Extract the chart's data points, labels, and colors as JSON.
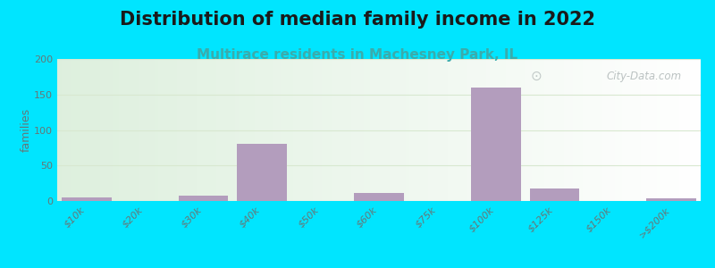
{
  "title": "Distribution of median family income in 2022",
  "subtitle": "Multirace residents in Machesney Park, IL",
  "ylabel": "families",
  "categories": [
    "$10k",
    "$20k",
    "$30k",
    "$40k",
    "$50k",
    "$60k",
    "$75k",
    "$100k",
    "$125k",
    "$150k",
    ">$200k"
  ],
  "values": [
    5,
    0,
    8,
    80,
    0,
    11,
    0,
    160,
    18,
    0,
    4
  ],
  "bar_color": "#b39dbd",
  "background_color": "#00e5ff",
  "ylim": [
    0,
    200
  ],
  "yticks": [
    0,
    50,
    100,
    150,
    200
  ],
  "title_fontsize": 15,
  "subtitle_fontsize": 11,
  "subtitle_color": "#3aacac",
  "watermark": "City-Data.com",
  "watermark_color": "#b0b8b8",
  "grid_color": "#d8e8d0"
}
